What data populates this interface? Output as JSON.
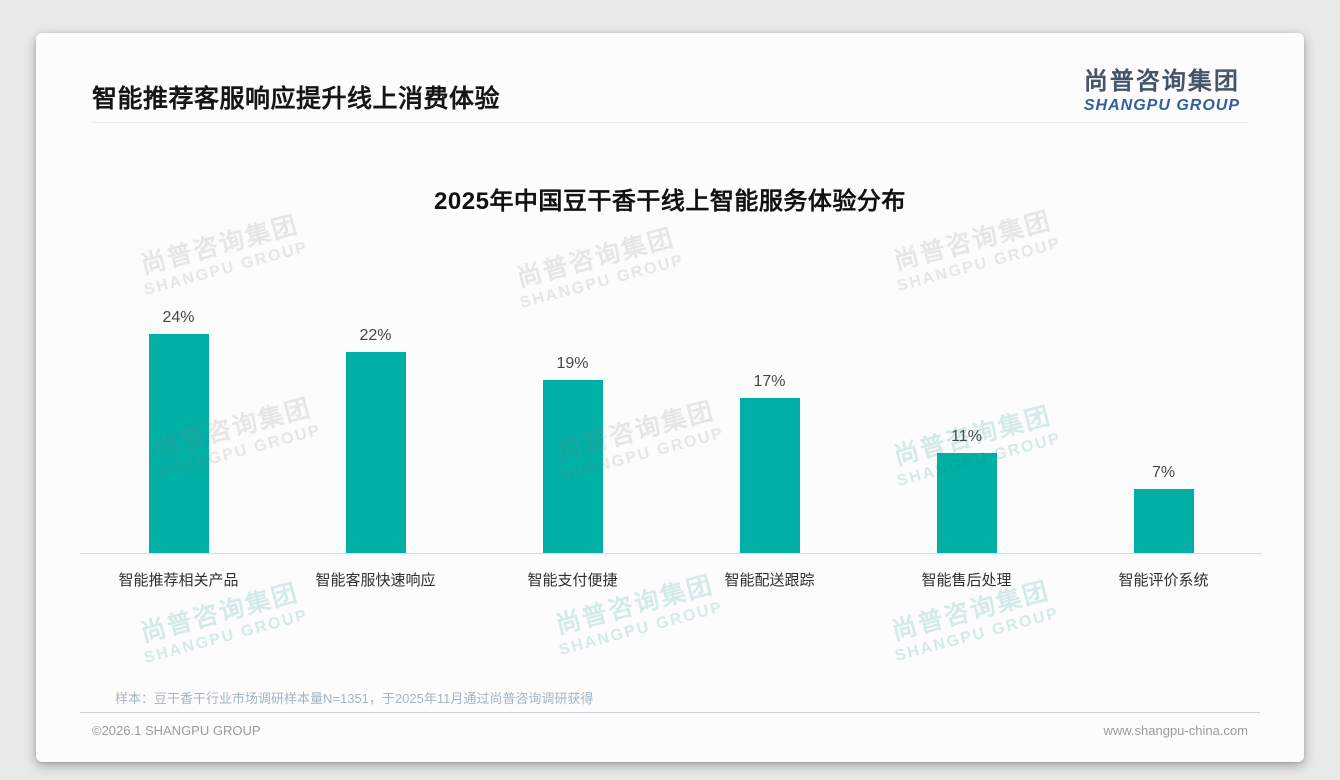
{
  "header": {
    "title": "智能推荐客服响应提升线上消费体验"
  },
  "logo": {
    "name_cn": "尚普咨询集团",
    "name_en": "SHANGPU GROUP"
  },
  "chart_data": {
    "type": "bar",
    "title": "2025年中国豆干香干线上智能服务体验分布",
    "categories": [
      "智能推荐相关产品",
      "智能客服快速响应",
      "智能支付便捷",
      "智能配送跟踪",
      "智能售后处理",
      "智能评价系统"
    ],
    "values": [
      24,
      22,
      19,
      17,
      11,
      7
    ],
    "value_labels": [
      "24%",
      "22%",
      "19%",
      "17%",
      "11%",
      "7%"
    ],
    "value_suffix": "%",
    "bar_color": "#00b0a6",
    "ylim": [
      0,
      25
    ],
    "grid": false,
    "legend": false,
    "xlabel": "",
    "ylabel": ""
  },
  "watermark": {
    "line_cn": "尚普咨询集团",
    "line_en": "SHANGPU GROUP"
  },
  "source_note": "样本：豆干香干行业市场调研样本量N=1351，于2025年11月通过尚普咨询调研获得",
  "footer": {
    "copyright": "©2026.1 SHANGPU GROUP",
    "website": "www.shangpu-china.com"
  },
  "colors": {
    "bar": "#00b0a6",
    "logo_cn": "#44546a",
    "logo_en": "#2f5f9e",
    "source_note": "#a3b5c5",
    "card_background": "#fcfcfd",
    "page_background": "#e8e9e9"
  }
}
